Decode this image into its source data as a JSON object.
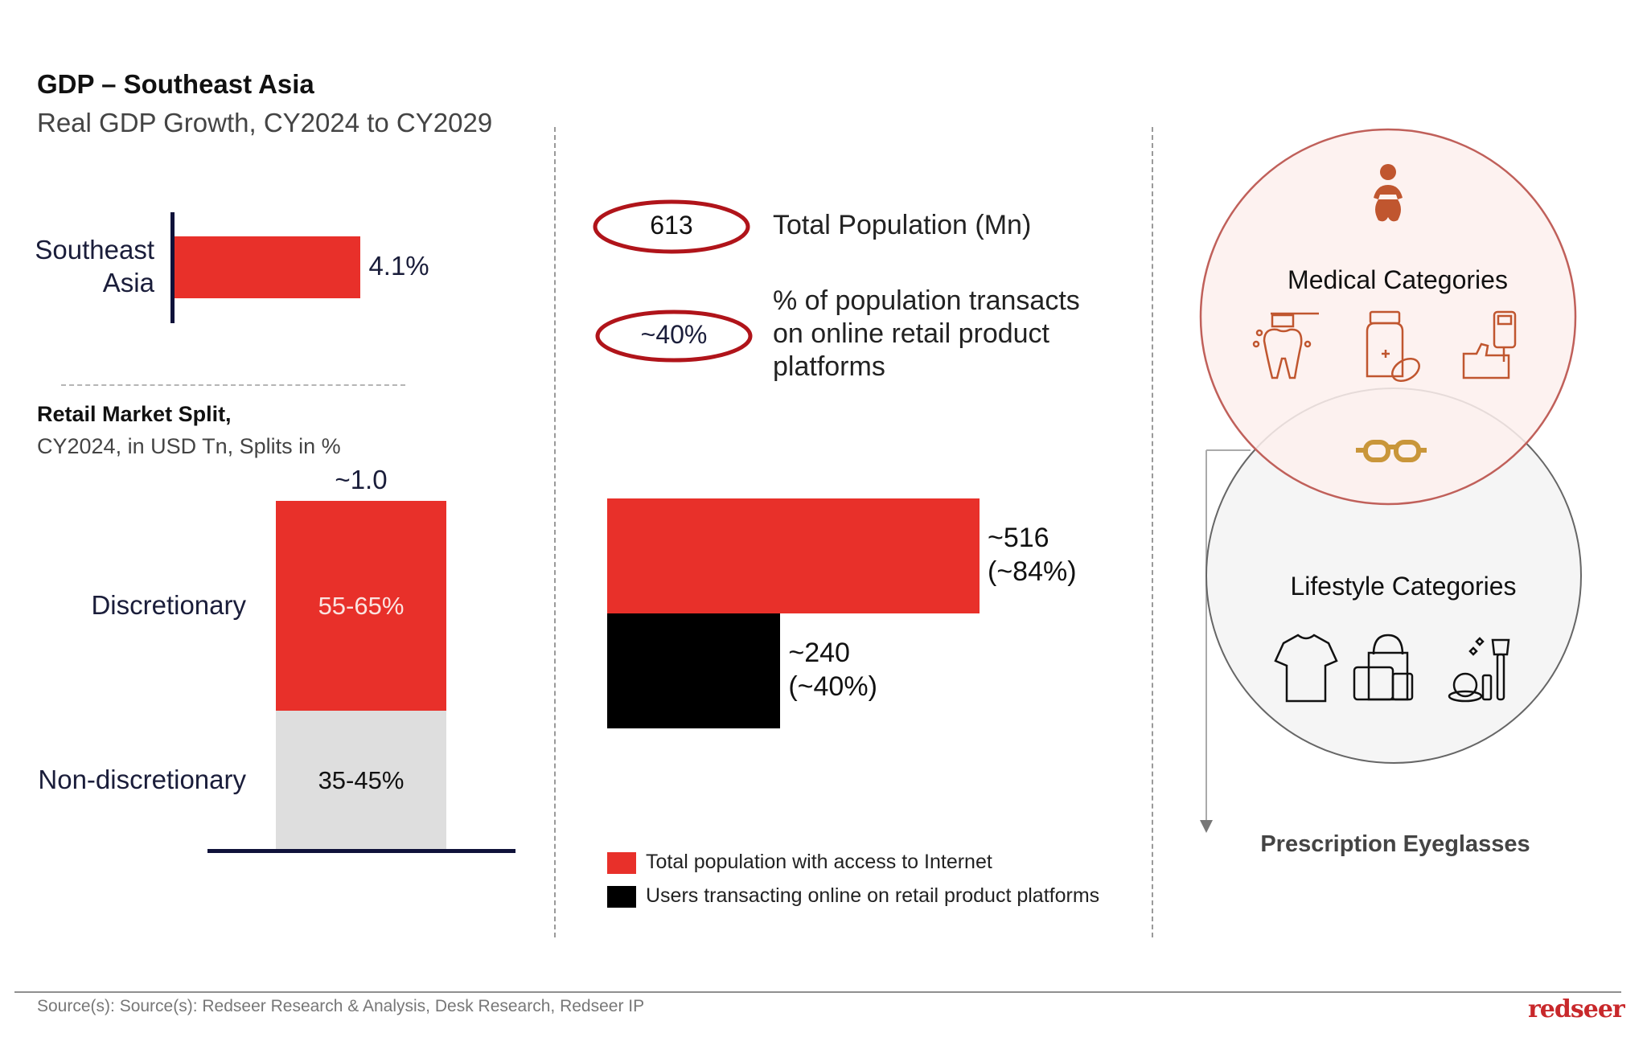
{
  "header": {
    "title": "GDP – Southeast Asia",
    "subtitle": "Real GDP Growth, CY2024 to CY2029"
  },
  "chart_data": [
    {
      "type": "bar",
      "orientation": "horizontal",
      "title": "GDP – Southeast Asia",
      "subtitle": "Real GDP Growth, CY2024 to CY2029",
      "categories": [
        "Southeast Asia"
      ],
      "category_lines": [
        "Southeast",
        "Asia"
      ],
      "values": [
        4.1
      ],
      "value_labels": [
        "4.1%"
      ],
      "unit": "%",
      "color": "#e8302a",
      "xlim": [
        0,
        6.2
      ]
    },
    {
      "type": "bar",
      "orientation": "vertical-stacked",
      "title": "Retail Market Split,",
      "subtitle": "CY2024, in USD Tn, Splits in %",
      "total_label": "~1.0",
      "total_value": 1.0,
      "segments": [
        {
          "name": "Discretionary",
          "range_label": "55-65%",
          "share": 60,
          "color": "#e8302a"
        },
        {
          "name": "Non-discretionary",
          "range_label": "35-45%",
          "share": 40,
          "color": "#dedede"
        }
      ]
    },
    {
      "type": "bar",
      "orientation": "horizontal",
      "series": [
        {
          "name": "Total population with access to Internet",
          "value": 516,
          "value_label": "~516",
          "share_label": "(~84%)",
          "color": "#e8302a"
        },
        {
          "name": "Users transacting online on retail product platforms",
          "value": 240,
          "value_label": "~240",
          "share_label": "(~40%)",
          "color": "#000000"
        }
      ],
      "unit": "Mn",
      "xlim": [
        0,
        516
      ],
      "legend": "bottom-left"
    }
  ],
  "stats": [
    {
      "value": "613",
      "description": "Total Population (Mn)"
    },
    {
      "value": "~40%",
      "description_lines": [
        "% of population transacts",
        "on online retail product",
        "platforms"
      ]
    }
  ],
  "venn": {
    "top": {
      "label": "Medical Categories",
      "fill": "#fdf0ed",
      "stroke": "#c0605a",
      "icons": [
        "baby-diaper-icon",
        "tooth-brush-icon",
        "medicine-bottle-pills-icon",
        "glucometer-hand-icon"
      ]
    },
    "bottom": {
      "label": "Lifestyle Categories",
      "fill": "#f5f5f5",
      "stroke": "#666666",
      "icons": [
        "tshirt-icon",
        "handbag-price-tag-icon",
        "cosmetics-icon"
      ]
    },
    "overlap_icon": "eyeglasses-icon",
    "overlap_label": "Prescription Eyeglasses"
  },
  "colors": {
    "accent_red": "#e8302a",
    "navy": "#10123a",
    "oval_red": "#b0141a",
    "icon_rust": "#c0562f",
    "glasses_gold": "#c9963a"
  },
  "footer": {
    "source": "Source(s): Source(s): Redseer Research & Analysis, Desk Research, Redseer IP",
    "logo": "redseer"
  }
}
